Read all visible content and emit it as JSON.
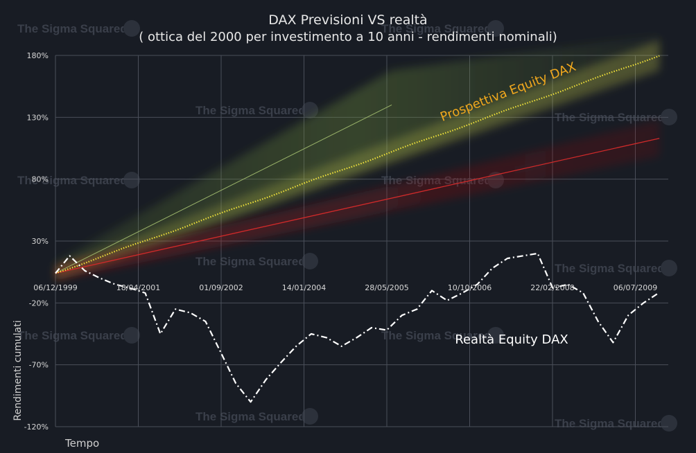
{
  "header": {
    "title": "DAX Previsioni VS realtà",
    "subtitle": "( ottica del 2000 per investimento a 10 anni - rendimenti nominali)"
  },
  "watermark": "The Sigma Squared",
  "colors": {
    "background": "#181c24",
    "grid": "#4a4f5a",
    "prospective": "#f5e63a",
    "prospective_label": "#f0a81e",
    "upper_line": "#9ab36a",
    "lower_line": "#d02a2a",
    "reality": "#ffffff"
  },
  "chart_data": {
    "type": "line",
    "title": "DAX Previsioni VS realtà",
    "subtitle": "( ottica del 2000 per investimento a 10 anni - rendimenti nominali)",
    "xlabel": "Tempo",
    "ylabel": "Rendimenti cumulati",
    "x_ticks": [
      "06/12/1999",
      "18/04/2001",
      "01/09/2002",
      "14/01/2004",
      "28/05/2005",
      "10/10/2006",
      "22/02/2008",
      "06/07/2009"
    ],
    "y_ticks": [
      "180%",
      "130%",
      "80%",
      "30%",
      "-20%",
      "-70%",
      "-120%"
    ],
    "ylim": [
      -120,
      180
    ],
    "grid": true,
    "series": [
      {
        "name": "Prospettiva Equity DAX",
        "style": "dotted",
        "x": [
          "1999-12-06",
          "2009-12-06"
        ],
        "values": [
          4,
          180
        ]
      },
      {
        "name": "",
        "style": "thin-upper-band",
        "x": [
          "1999-12-06",
          "2005-07-01"
        ],
        "values": [
          4,
          140
        ]
      },
      {
        "name": "",
        "style": "lower-band",
        "x": [
          "1999-12-06",
          "2009-12-06"
        ],
        "values": [
          4,
          113
        ]
      },
      {
        "name": "Realtà Equity DAX",
        "style": "dash-dot",
        "x": [
          "1999-12-06",
          "2000-03-01",
          "2000-06-01",
          "2000-09-01",
          "2000-12-01",
          "2001-03-01",
          "2001-06-01",
          "2001-09-01",
          "2001-12-01",
          "2002-03-01",
          "2002-06-01",
          "2002-09-01",
          "2002-12-01",
          "2003-03-01",
          "2003-06-01",
          "2003-09-01",
          "2003-12-01",
          "2004-03-01",
          "2004-06-01",
          "2004-09-01",
          "2004-12-01",
          "2005-03-01",
          "2005-06-01",
          "2005-09-01",
          "2005-12-01",
          "2006-03-01",
          "2006-06-01",
          "2006-09-01",
          "2006-12-01",
          "2007-03-01",
          "2007-06-01",
          "2007-09-01",
          "2007-12-01",
          "2008-03-01",
          "2008-06-01",
          "2008-09-01",
          "2008-12-01",
          "2009-03-01",
          "2009-06-01",
          "2009-09-01",
          "2009-12-01"
        ],
        "values": [
          4,
          18,
          6,
          0,
          -5,
          -8,
          -12,
          -45,
          -25,
          -28,
          -35,
          -60,
          -85,
          -100,
          -82,
          -68,
          -55,
          -45,
          -48,
          -55,
          -48,
          -40,
          -42,
          -30,
          -25,
          -10,
          -18,
          -12,
          -5,
          8,
          16,
          18,
          20,
          -8,
          -5,
          -12,
          -35,
          -52,
          -30,
          -20,
          -12
        ]
      }
    ],
    "annotations": [
      "Prospettiva Equity DAX",
      "Realtà Equity DAX"
    ]
  }
}
